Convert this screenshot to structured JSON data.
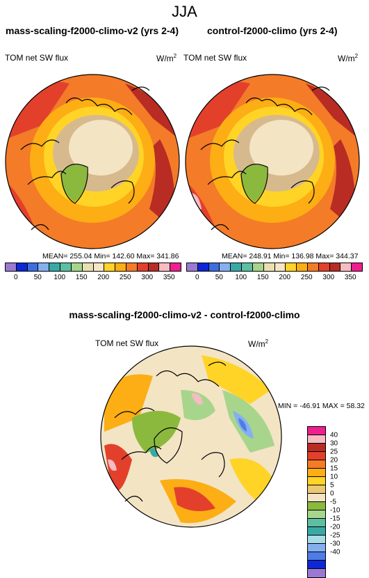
{
  "season": "JJA",
  "panel_left": {
    "title": "mass-scaling-f2000-climo-v2 (yrs 2-4)",
    "variable": "TOM net SW flux",
    "units": "W/m",
    "units_sup": "2",
    "stats": "MEAN= 255.04  Min= 142.60  Max= 341.86"
  },
  "panel_right": {
    "title": "control-f2000-climo (yrs 2-4)",
    "variable": "TOM net SW flux",
    "units": "W/m",
    "units_sup": "2",
    "stats": "MEAN= 248.91  Min= 136.98  Max= 344.37"
  },
  "panel_diff": {
    "title": "mass-scaling-f2000-climo-v2 - control-f2000-climo",
    "variable": "TOM net SW flux",
    "units": "W/m",
    "units_sup": "2",
    "stats": "MIN = -46.91 MAX =  58.32"
  },
  "top_colorbar": {
    "colors": [
      "#9a79d3",
      "#0d27d6",
      "#3c6ee0",
      "#86aff0",
      "#38aaa6",
      "#5cbfa2",
      "#a7d58c",
      "#eadfb0",
      "#f6e6c5",
      "#ffd426",
      "#fcae14",
      "#f47b28",
      "#e3402c",
      "#b82c24",
      "#f6bcc2",
      "#ee1f8e"
    ],
    "ticks": [
      "0",
      "50",
      "100",
      "150",
      "200",
      "250",
      "300",
      "350"
    ]
  },
  "diff_colorbar": {
    "colors": [
      "#ee1f8e",
      "#f6bcc2",
      "#b82c24",
      "#e3402c",
      "#f47b28",
      "#fcae14",
      "#ffd426",
      "#ecc774",
      "#f3e4c4",
      "#8ab93e",
      "#a7d58c",
      "#5cbfa2",
      "#38aaa6",
      "#a8dbe8",
      "#86aff0",
      "#4f7de8",
      "#0d27d6",
      "#9a79d3"
    ],
    "ticks": [
      "40",
      "30",
      "25",
      "20",
      "15",
      "10",
      "5",
      "0",
      "-5",
      "-10",
      "-15",
      "-20",
      "-25",
      "-30",
      "-40"
    ]
  }
}
